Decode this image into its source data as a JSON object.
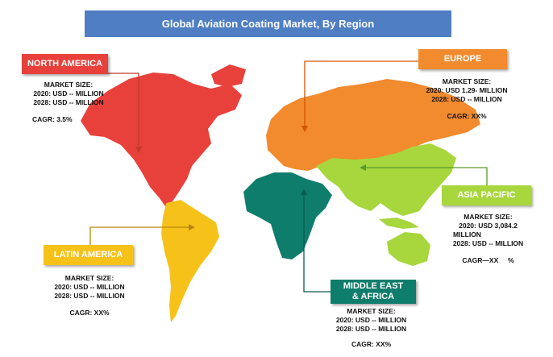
{
  "title": "Global Aviation Coating Market, By Region",
  "colors": {
    "title_bg": "#4f7ec3",
    "north_america": "#e8403b",
    "europe": "#f28a2e",
    "asia_pacific": "#a7d63d",
    "latin_america": "#f6c21a",
    "middle_east_africa": "#0f7d6b"
  },
  "regions": {
    "north_america": {
      "label": "NORTH AMERICA",
      "market_size_label": "MARKET SIZE:",
      "line_2020": "2020: USD -- MILLION",
      "line_2028": "2028: USD -- MILLION",
      "cagr": "CAGR: 3.5%"
    },
    "europe": {
      "label": "EUROPE",
      "market_size_label": "MARKET SIZE:",
      "line_2020": "2020: USD 1.29- MILLION",
      "line_2028": "2028: USD -- MILLION",
      "cagr": "CAGR: XX%"
    },
    "asia_pacific": {
      "label": "ASIA PACIFIC",
      "market_size_label": "MARKET SIZE:",
      "line_2020": "2020: USD  3,084.2",
      "line_2020b": "MILLION",
      "line_2028": "2028: USD -- MILLION",
      "cagr": "CAGR—XX     %"
    },
    "latin_america": {
      "label": "LATIN AMERICA",
      "market_size_label": "MARKET SIZE:",
      "line_2020": "2020: USD -- MILLION",
      "line_2028": "2028: USD -- MILLION",
      "cagr": "CAGR: XX%"
    },
    "middle_east_africa": {
      "label": "MIDDLE EAST\n& AFRICA",
      "market_size_label": "MARKET SIZE:",
      "line_2020": "2020: USD -- MILLION",
      "line_2028": "2028: USD -- MILLION",
      "cagr": "CAGR: XX%"
    }
  }
}
